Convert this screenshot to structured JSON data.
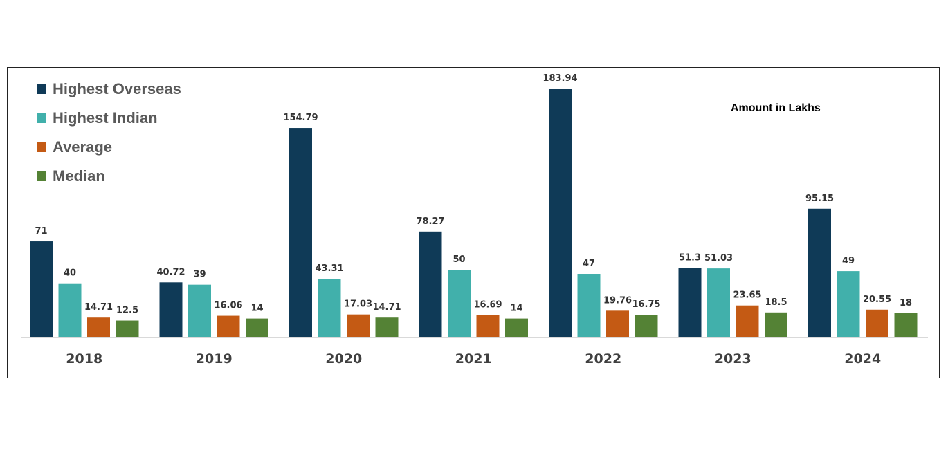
{
  "chart_data": {
    "type": "bar",
    "title": "",
    "xlabel": "",
    "ylabel": "",
    "note": "Amount in Lakhs",
    "categories": [
      "2018",
      "2019",
      "2020",
      "2021",
      "2022",
      "2023",
      "2024"
    ],
    "series": [
      {
        "name": "Highest Overseas",
        "color": "#0f3a57",
        "values": [
          71,
          40.72,
          154.79,
          78.27,
          183.94,
          51.3,
          95.15
        ]
      },
      {
        "name": "Highest Indian",
        "color": "#41b0ab",
        "values": [
          40,
          39,
          43.31,
          50,
          47,
          51.03,
          49
        ]
      },
      {
        "name": "Average",
        "color": "#c45a14",
        "values": [
          14.71,
          16.06,
          17.03,
          16.69,
          19.76,
          23.65,
          20.55
        ]
      },
      {
        "name": "Median",
        "color": "#548235",
        "values": [
          12.5,
          14,
          14.71,
          14,
          16.75,
          18.5,
          18
        ]
      }
    ],
    "ylim": [
      0,
      183.94
    ],
    "grid": false,
    "legend_position": "top-left",
    "axis_line_color": "#d9d9d9"
  }
}
